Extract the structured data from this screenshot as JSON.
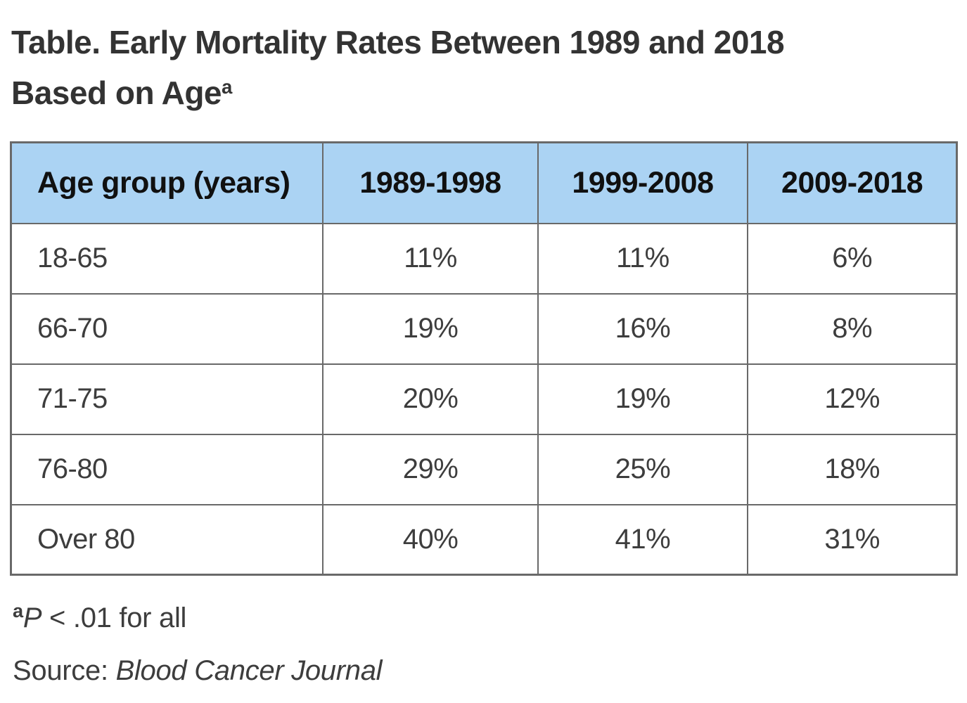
{
  "title": {
    "line1": "Table. Early Mortality Rates Between 1989 and 2018",
    "line2": "Based on Age",
    "footnote_marker": "a"
  },
  "table": {
    "header": {
      "bg_color": "#abd3f3",
      "border_color": "#696969",
      "cells": [
        "Age group (years)",
        "1989-1998",
        "1999-2008",
        "2009-2018"
      ]
    },
    "rows": [
      {
        "cells": [
          "18-65",
          "11%",
          "11%",
          "6%"
        ]
      },
      {
        "cells": [
          "66-70",
          "19%",
          "16%",
          "8%"
        ]
      },
      {
        "cells": [
          "71-75",
          "20%",
          "19%",
          "12%"
        ]
      },
      {
        "cells": [
          "76-80",
          "29%",
          "25%",
          "18%"
        ]
      },
      {
        "cells": [
          "Over 80",
          "40%",
          "41%",
          "31%"
        ]
      }
    ]
  },
  "footnotes": {
    "marker": "a",
    "p_symbol": "P",
    "p_text": " < .01 for all",
    "source_label": "Source: ",
    "source_name": "Blood Cancer Journal"
  },
  "colors": {
    "title_text": "#333333",
    "body_text": "#3d3d3d",
    "header_text": "#101010",
    "header_bg": "#abd3f3",
    "border": "#696969",
    "background": "#ffffff"
  },
  "chart_data": {
    "type": "table",
    "title": "Table. Early Mortality Rates Between 1989 and 2018 Based on Age",
    "columns": [
      "Age group (years)",
      "1989-1998",
      "1999-2008",
      "2009-2018"
    ],
    "categories": [
      "18-65",
      "66-70",
      "71-75",
      "76-80",
      "Over 80"
    ],
    "series": [
      {
        "name": "1989-1998",
        "values": [
          11,
          19,
          20,
          29,
          40
        ]
      },
      {
        "name": "1999-2008",
        "values": [
          11,
          16,
          19,
          25,
          41
        ]
      },
      {
        "name": "2009-2018",
        "values": [
          6,
          8,
          12,
          18,
          31
        ]
      }
    ],
    "unit": "%",
    "footnote": "P < .01 for all",
    "source": "Blood Cancer Journal"
  }
}
